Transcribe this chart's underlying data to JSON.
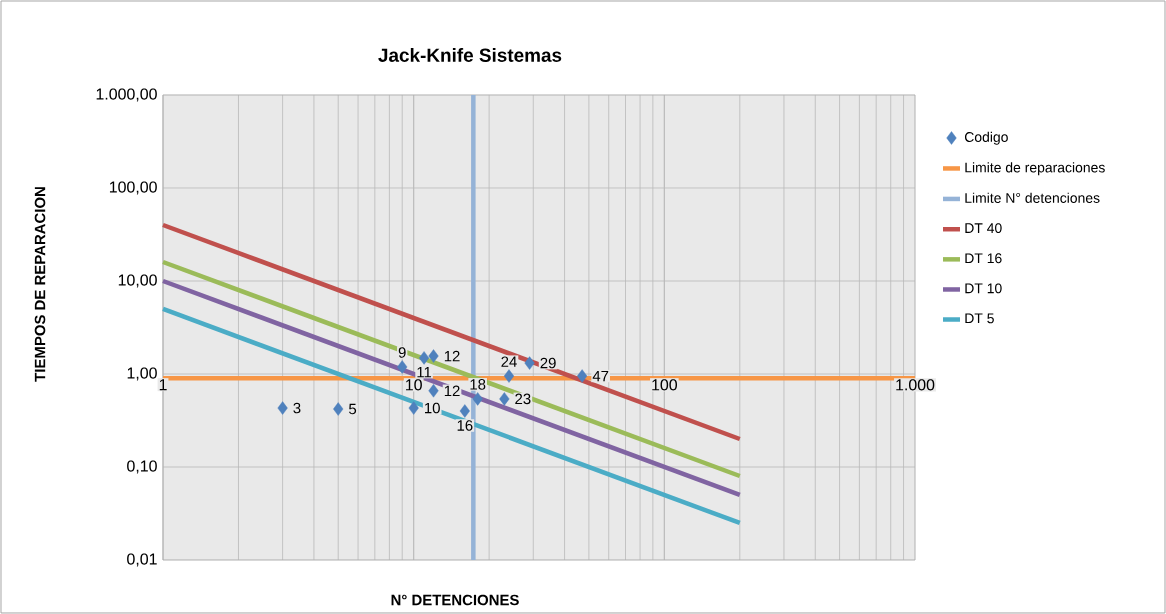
{
  "chart_data": {
    "type": "scatter",
    "title": "Jack-Knife Sistemas",
    "xlabel": "N° DETENCIONES",
    "ylabel": "TIEMPOS DE REPARACION",
    "log": "xy",
    "xlim": [
      1,
      1000
    ],
    "ylim": [
      0.01,
      1000
    ],
    "xticks": [
      1,
      10,
      100,
      {
        "value": 1000,
        "label": "1.000"
      }
    ],
    "yticks": [
      {
        "value": 0.01,
        "label": "0,01"
      },
      {
        "value": 0.1,
        "label": "0,10"
      },
      {
        "value": 1,
        "label": "1,00"
      },
      {
        "value": 10,
        "label": "10,00"
      },
      {
        "value": 100,
        "label": "100,00"
      },
      {
        "value": 1000,
        "label": "1.000,00"
      }
    ],
    "grid": true,
    "legend": "right",
    "annotations": [
      {
        "text": "3",
        "x": 3,
        "y": 0.43
      },
      {
        "text": "5",
        "x": 5,
        "y": 0.42
      },
      {
        "text": "9",
        "x": 9,
        "y": 1.19
      },
      {
        "text": "10",
        "x": 10,
        "y": 0.43
      },
      {
        "text": "11",
        "x": 11,
        "y": 1.49
      },
      {
        "text": "12",
        "x": 12,
        "y": 1.56
      },
      {
        "text": "12",
        "x": 12,
        "y": 0.66
      },
      {
        "text": "16",
        "x": 16,
        "y": 0.4
      },
      {
        "text": "18",
        "x": 18,
        "y": 0.54
      },
      {
        "text": "23",
        "x": 23,
        "y": 0.54
      },
      {
        "text": "24",
        "x": 24,
        "y": 0.95
      },
      {
        "text": "29",
        "x": 29,
        "y": 1.31
      },
      {
        "text": "47",
        "x": 47,
        "y": 0.95
      }
    ],
    "series": [
      {
        "name": "Codigo",
        "marker": "diamond",
        "color": "#4f81bd",
        "x": [
          3,
          5,
          9,
          10,
          11,
          12,
          12,
          16,
          18,
          23,
          24,
          29,
          47
        ],
        "values": [
          0.43,
          0.42,
          1.19,
          0.43,
          1.49,
          1.56,
          0.66,
          0.4,
          0.54,
          0.54,
          0.95,
          1.31,
          0.95
        ]
      },
      {
        "name": "Limite de reparaciones",
        "type": "line",
        "color": "#f79646",
        "x": [
          1,
          1000
        ],
        "values": [
          0.9,
          0.9
        ]
      },
      {
        "name": "Limite N° detenciones",
        "type": "line",
        "color": "#95b3d7",
        "x": [
          17.3,
          17.3
        ],
        "values": [
          0.01,
          1000
        ]
      },
      {
        "name": "DT 40",
        "type": "line",
        "color": "#c0504d",
        "x": [
          1,
          200
        ],
        "values": [
          40,
          0.2
        ]
      },
      {
        "name": "DT 16",
        "type": "line",
        "color": "#9bbb59",
        "x": [
          1,
          200
        ],
        "values": [
          16,
          0.08
        ]
      },
      {
        "name": "DT 10",
        "type": "line",
        "color": "#8064a2",
        "x": [
          1,
          200
        ],
        "values": [
          10,
          0.05
        ]
      },
      {
        "name": "DT 5",
        "type": "line",
        "color": "#4bacc6",
        "x": [
          1,
          200
        ],
        "values": [
          5,
          0.025
        ]
      }
    ]
  }
}
